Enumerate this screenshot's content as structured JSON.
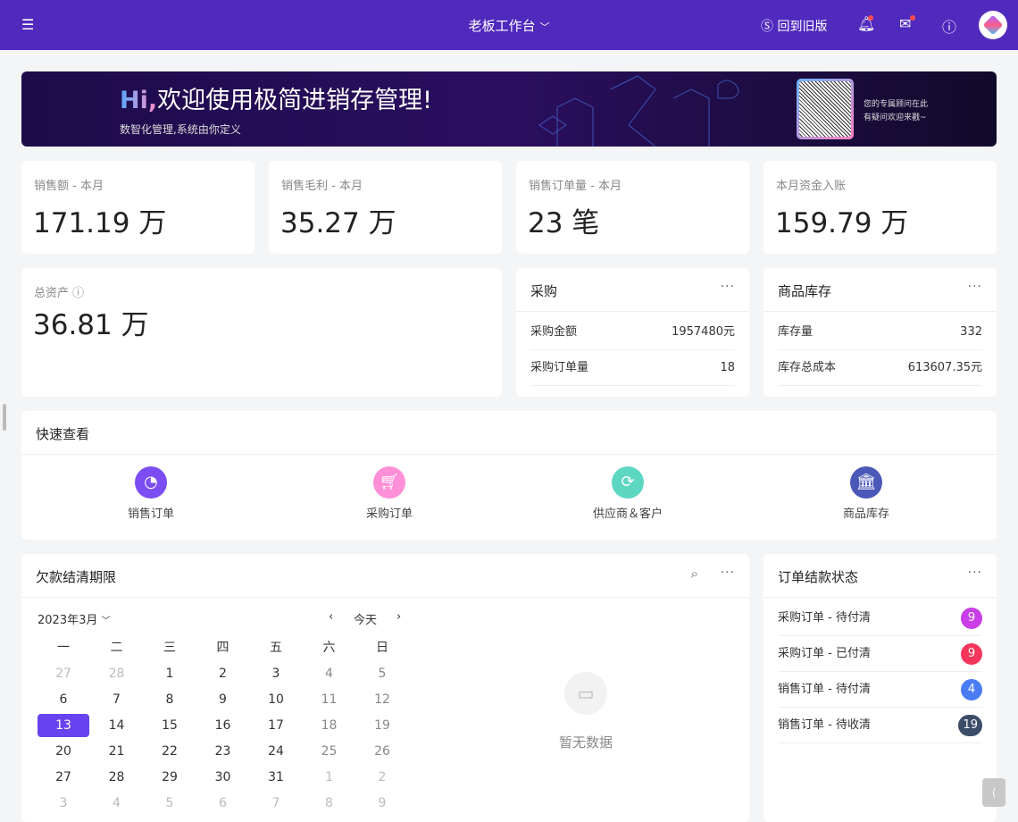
{
  "header": {
    "title": "老板工作台",
    "old_version": "回到旧版",
    "icons": [
      "menu-icon",
      "bell-icon",
      "message-box-icon",
      "help-icon",
      "avatar"
    ]
  },
  "banner": {
    "hi": "Hi,",
    "welcome": "欢迎使用极简进销存管理!",
    "subtitle": "数智化管理,系统由你定义",
    "advisor_line1": "您的专属顾问在此",
    "advisor_line2": "有疑问欢迎来戳~"
  },
  "stats": [
    {
      "label": "销售额 - 本月",
      "value": "171.19 万"
    },
    {
      "label": "销售毛利 - 本月",
      "value": "35.27 万"
    },
    {
      "label": "销售订单量 - 本月",
      "value": "23 笔"
    },
    {
      "label": "本月资金入账",
      "value": "159.79 万"
    }
  ],
  "assets": {
    "label": "总资产",
    "value": "36.81 万"
  },
  "purchase": {
    "title": "采购",
    "rows": [
      {
        "k": "采购金额",
        "v": "1957480元"
      },
      {
        "k": "采购订单量",
        "v": "18"
      }
    ]
  },
  "stock": {
    "title": "商品库存",
    "rows": [
      {
        "k": "库存量",
        "v": "332"
      },
      {
        "k": "库存总成本",
        "v": "613607.35元"
      }
    ]
  },
  "quick": {
    "title": "快速查看",
    "items": [
      {
        "label": "销售订单",
        "color": "#7b4df2"
      },
      {
        "label": "采购订单",
        "color": "#ff8fd6"
      },
      {
        "label": "供应商＆客户",
        "color": "#5dd6c2"
      },
      {
        "label": "商品库存",
        "color": "#4a58b8"
      }
    ]
  },
  "debt": {
    "title": "欠款结清期限",
    "month": "2023年3月",
    "today": "今天",
    "empty": "暂无数据",
    "weekdays": [
      "一",
      "二",
      "三",
      "四",
      "五",
      "六",
      "日"
    ],
    "weeks": [
      [
        "27",
        "28",
        "1",
        "2",
        "3",
        "4",
        "5"
      ],
      [
        "6",
        "7",
        "8",
        "9",
        "10",
        "11",
        "12"
      ],
      [
        "13",
        "14",
        "15",
        "16",
        "17",
        "18",
        "19"
      ],
      [
        "20",
        "21",
        "22",
        "23",
        "24",
        "25",
        "26"
      ],
      [
        "27",
        "28",
        "29",
        "30",
        "31",
        "1",
        "2"
      ],
      [
        "3",
        "4",
        "5",
        "6",
        "7",
        "8",
        "9"
      ]
    ],
    "selected": "13"
  },
  "orders": {
    "title": "订单结款状态",
    "rows": [
      {
        "k": "采购订单 - 待付清",
        "v": "9",
        "color": "#c93ee8"
      },
      {
        "k": "采购订单 - 已付清",
        "v": "9",
        "color": "#f5365c"
      },
      {
        "k": "销售订单 - 待付清",
        "v": "4",
        "color": "#4a7cf5"
      },
      {
        "k": "销售订单 - 待收清",
        "v": "19",
        "color": "#3b4c68"
      }
    ]
  }
}
